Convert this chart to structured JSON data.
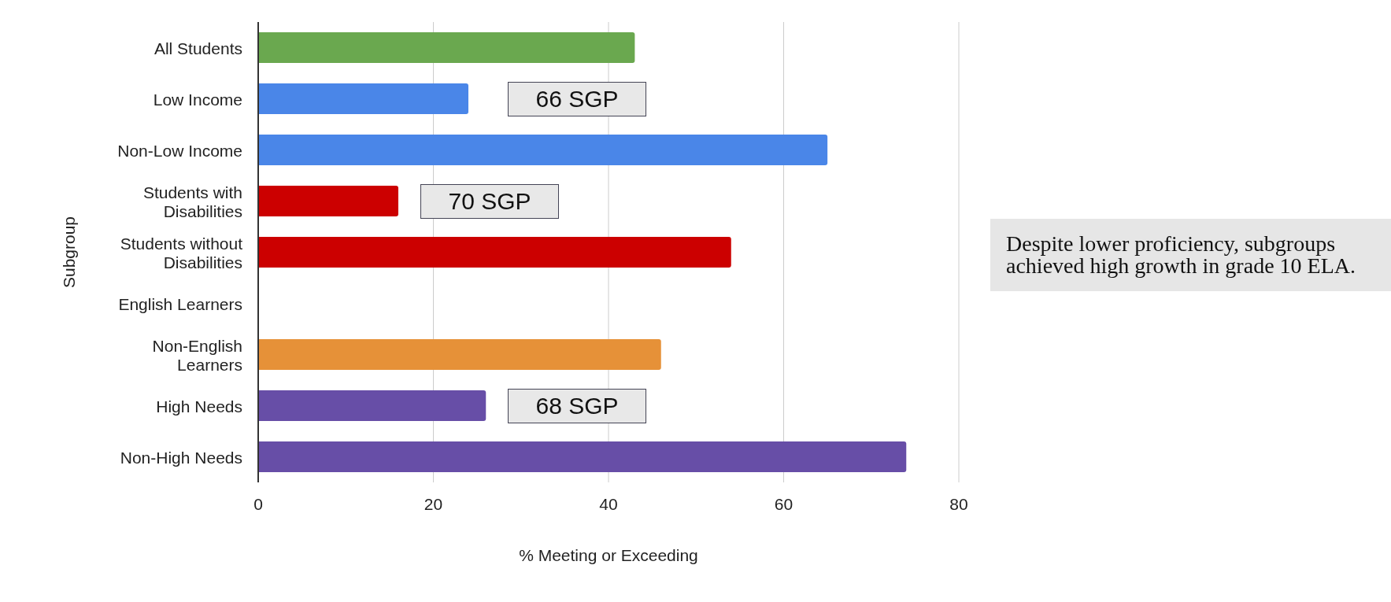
{
  "chart_data": {
    "type": "bar",
    "orientation": "horizontal",
    "categories": [
      "All Students",
      "Low Income",
      "Non-Low Income",
      "Students with Disabilities",
      "Students without Disabilities",
      "English Learners",
      "Non-English Learners",
      "High Needs",
      "Non-High Needs"
    ],
    "values": [
      43,
      24,
      65,
      16,
      54,
      null,
      46,
      26,
      74
    ],
    "colors": [
      "#6aa84f",
      "#4a86e8",
      "#4a86e8",
      "#cc0000",
      "#cc0000",
      "#e69138",
      "#e69138",
      "#674ea7",
      "#674ea7"
    ],
    "xlim": [
      0,
      80
    ],
    "xticks": [
      0,
      20,
      40,
      60,
      80
    ],
    "grid": "x",
    "xlabel": "% Meeting or Exceeding",
    "ylabel": "Subgroup",
    "annotations": [
      "66 SGP",
      "70 SGP",
      "68 SGP",
      "Despite lower proficiency, subgroups achieved high growth in grade 10 ELA."
    ]
  }
}
